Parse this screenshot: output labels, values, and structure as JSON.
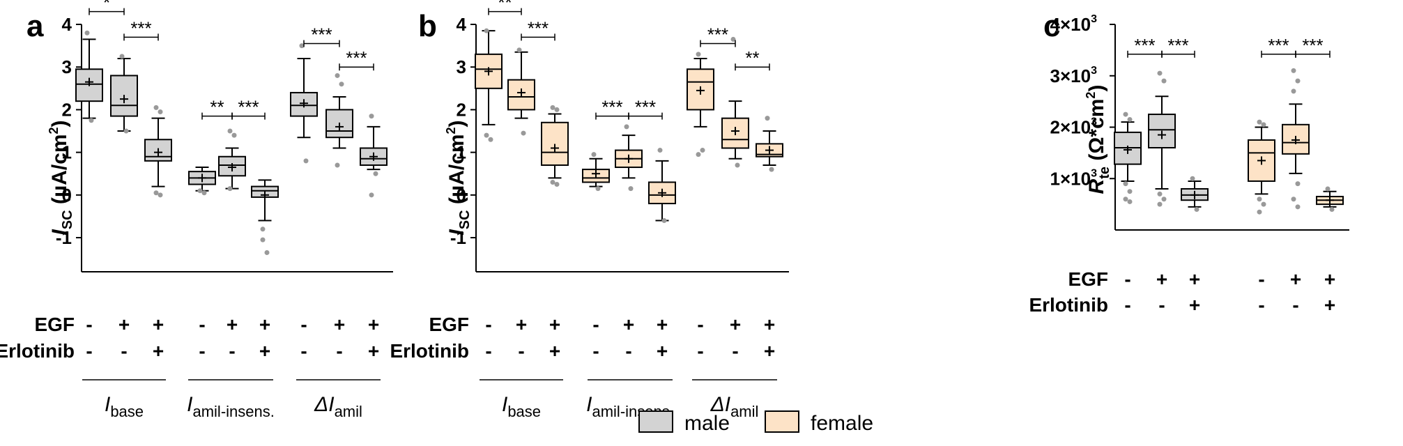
{
  "colors": {
    "male": "#d3d3d3",
    "female": "#fde3c7",
    "whisker": "#000000",
    "point": "#999999"
  },
  "legend": {
    "male_label": "male",
    "female_label": "female"
  },
  "treatments": {
    "egf_label": "EGF",
    "erlotinib_label": "Erlotinib",
    "egf": [
      "-",
      "+",
      "+"
    ],
    "erlotinib": [
      "-",
      "-",
      "+"
    ]
  },
  "chart_data": [
    {
      "panel_label": "a",
      "type": "box",
      "series_color": "male",
      "ylabel_main": "I",
      "ylabel_sub": "SC",
      "ylabel_rest": " (µA/cm",
      "ylabel_sup": "2",
      "ylabel_end": ")",
      "ylim": [
        -1.8,
        4
      ],
      "yticks": [
        4,
        3,
        2,
        1,
        0,
        -1
      ],
      "ytick_labels": [
        "4",
        "3",
        "2",
        "1",
        "0",
        "-1"
      ],
      "groups": [
        {
          "label_main": "I",
          "label_sub": "base",
          "label_prefix": ""
        },
        {
          "label_main": "I",
          "label_sub": "amil-insens.",
          "label_prefix": ""
        },
        {
          "label_main": "I",
          "label_sub": "amil",
          "label_prefix": "Δ"
        }
      ],
      "boxes": [
        {
          "min": 1.8,
          "q1": 2.2,
          "median": 2.6,
          "q3": 2.95,
          "max": 3.65,
          "mean": 2.65,
          "outliers": [
            3.8,
            1.75
          ]
        },
        {
          "min": 1.5,
          "q1": 1.85,
          "median": 2.1,
          "q3": 2.8,
          "max": 3.2,
          "mean": 2.25,
          "outliers": [
            3.25,
            1.5
          ]
        },
        {
          "min": 0.2,
          "q1": 0.8,
          "median": 0.9,
          "q3": 1.3,
          "max": 1.8,
          "mean": 1.0,
          "outliers": [
            2.05,
            1.95,
            0.05,
            0.0
          ]
        },
        {
          "min": 0.1,
          "q1": 0.25,
          "median": 0.4,
          "q3": 0.55,
          "max": 0.65,
          "mean": 0.4,
          "outliers": [
            0.1,
            0.05
          ]
        },
        {
          "min": 0.15,
          "q1": 0.45,
          "median": 0.7,
          "q3": 0.9,
          "max": 1.1,
          "mean": 0.65,
          "outliers": [
            1.5,
            1.4,
            0.15
          ]
        },
        {
          "min": -0.6,
          "q1": -0.05,
          "median": 0.1,
          "q3": 0.2,
          "max": 0.35,
          "mean": 0.0,
          "outliers": [
            -1.05,
            -1.35,
            -0.8
          ]
        },
        {
          "min": 1.35,
          "q1": 1.85,
          "median": 2.1,
          "q3": 2.4,
          "max": 3.2,
          "mean": 2.15,
          "outliers": [
            3.5,
            0.8
          ]
        },
        {
          "min": 1.1,
          "q1": 1.35,
          "median": 1.5,
          "q3": 2.0,
          "max": 2.3,
          "mean": 1.6,
          "outliers": [
            2.8,
            2.6,
            0.7
          ]
        },
        {
          "min": 0.6,
          "q1": 0.7,
          "median": 0.85,
          "q3": 1.1,
          "max": 1.6,
          "mean": 0.9,
          "outliers": [
            1.85,
            0.5,
            0.0
          ]
        }
      ],
      "significance": [
        {
          "from": 0,
          "to": 1,
          "y": 4.3,
          "label": "*"
        },
        {
          "from": 1,
          "to": 2,
          "y": 3.7,
          "label": "***"
        },
        {
          "from": 3,
          "to": 4,
          "y": 1.85,
          "label": "**"
        },
        {
          "from": 4,
          "to": 5,
          "y": 1.85,
          "label": "***"
        },
        {
          "from": 6,
          "to": 7,
          "y": 3.55,
          "label": "***"
        },
        {
          "from": 7,
          "to": 8,
          "y": 3.0,
          "label": "***"
        }
      ]
    },
    {
      "panel_label": "b",
      "type": "box",
      "series_color": "female",
      "ylabel_main": "I",
      "ylabel_sub": "SC",
      "ylabel_rest": " (µA/cm",
      "ylabel_sup": "2",
      "ylabel_end": ")",
      "ylim": [
        -1.8,
        4
      ],
      "yticks": [
        4,
        3,
        2,
        1,
        0,
        -1
      ],
      "ytick_labels": [
        "4",
        "3",
        "2",
        "1",
        "0",
        "-1"
      ],
      "groups": [
        {
          "label_main": "I",
          "label_sub": "base",
          "label_prefix": ""
        },
        {
          "label_main": "I",
          "label_sub": "amil-insens.",
          "label_prefix": ""
        },
        {
          "label_main": "I",
          "label_sub": "amil",
          "label_prefix": "Δ"
        }
      ],
      "boxes": [
        {
          "min": 1.65,
          "q1": 2.5,
          "median": 2.95,
          "q3": 3.3,
          "max": 3.85,
          "mean": 2.9,
          "outliers": [
            1.4,
            1.3,
            3.85
          ]
        },
        {
          "min": 1.8,
          "q1": 2.0,
          "median": 2.3,
          "q3": 2.7,
          "max": 3.35,
          "mean": 2.4,
          "outliers": [
            3.4,
            1.45
          ]
        },
        {
          "min": 0.4,
          "q1": 0.7,
          "median": 1.0,
          "q3": 1.7,
          "max": 1.9,
          "mean": 1.1,
          "outliers": [
            2.05,
            2.0,
            0.3,
            0.25
          ]
        },
        {
          "min": 0.2,
          "q1": 0.3,
          "median": 0.4,
          "q3": 0.6,
          "max": 0.85,
          "mean": 0.5,
          "outliers": [
            0.95,
            0.15
          ]
        },
        {
          "min": 0.4,
          "q1": 0.65,
          "median": 0.85,
          "q3": 1.05,
          "max": 1.4,
          "mean": 0.85,
          "outliers": [
            1.6,
            0.15
          ]
        },
        {
          "min": -0.6,
          "q1": -0.2,
          "median": 0.0,
          "q3": 0.3,
          "max": 0.8,
          "mean": 0.05,
          "outliers": [
            1.05,
            -0.6
          ]
        },
        {
          "min": 1.6,
          "q1": 2.0,
          "median": 2.65,
          "q3": 2.95,
          "max": 3.2,
          "mean": 2.45,
          "outliers": [
            3.3,
            1.05,
            0.95
          ]
        },
        {
          "min": 0.85,
          "q1": 1.1,
          "median": 1.3,
          "q3": 1.8,
          "max": 2.2,
          "mean": 1.5,
          "outliers": [
            3.65,
            0.7
          ]
        },
        {
          "min": 0.7,
          "q1": 0.9,
          "median": 0.95,
          "q3": 1.2,
          "max": 1.5,
          "mean": 1.05,
          "outliers": [
            1.8,
            0.6
          ]
        }
      ],
      "significance": [
        {
          "from": 0,
          "to": 1,
          "y": 4.3,
          "label": "**"
        },
        {
          "from": 1,
          "to": 2,
          "y": 3.7,
          "label": "***"
        },
        {
          "from": 3,
          "to": 4,
          "y": 1.85,
          "label": "***"
        },
        {
          "from": 4,
          "to": 5,
          "y": 1.85,
          "label": "***"
        },
        {
          "from": 6,
          "to": 7,
          "y": 3.55,
          "label": "***"
        },
        {
          "from": 7,
          "to": 8,
          "y": 3.0,
          "label": "**"
        }
      ]
    },
    {
      "panel_label": "c",
      "type": "box",
      "ylabel_main": "R",
      "ylabel_sub": "te",
      "ylabel_rest": " (Ω*cm",
      "ylabel_sup": "2",
      "ylabel_end": ")",
      "ylim": [
        0,
        4000
      ],
      "yticks": [
        4000,
        3000,
        2000,
        1000
      ],
      "ytick_labels": [
        "4×10",
        "3×10",
        "2×10",
        "1×10"
      ],
      "ytick_sup": "3",
      "boxes": [
        {
          "color": "male",
          "min": 950,
          "q1": 1280,
          "median": 1600,
          "q3": 1900,
          "max": 2100,
          "mean": 1560,
          "outliers": [
            2250,
            2150,
            900,
            750,
            600,
            550
          ]
        },
        {
          "color": "male",
          "min": 800,
          "q1": 1600,
          "median": 1950,
          "q3": 2250,
          "max": 2600,
          "mean": 1850,
          "outliers": [
            3050,
            2900,
            700,
            600,
            500
          ]
        },
        {
          "color": "male",
          "min": 450,
          "q1": 580,
          "median": 680,
          "q3": 800,
          "max": 950,
          "mean": 680,
          "outliers": [
            1000,
            400
          ]
        },
        {
          "color": "female",
          "min": 700,
          "q1": 950,
          "median": 1500,
          "q3": 1750,
          "max": 2000,
          "mean": 1350,
          "outliers": [
            2100,
            2050,
            600,
            500,
            350
          ]
        },
        {
          "color": "female",
          "min": 1100,
          "q1": 1480,
          "median": 1700,
          "q3": 2050,
          "max": 2450,
          "mean": 1750,
          "outliers": [
            3100,
            2900,
            2700,
            900,
            600,
            450
          ]
        },
        {
          "color": "female",
          "min": 450,
          "q1": 500,
          "median": 580,
          "q3": 650,
          "max": 750,
          "mean": 580,
          "outliers": [
            800,
            400
          ]
        }
      ],
      "significance": [
        {
          "from": 0,
          "to": 1,
          "y": 3420,
          "label": "***"
        },
        {
          "from": 1,
          "to": 2,
          "y": 3420,
          "label": "***"
        },
        {
          "from": 3,
          "to": 4,
          "y": 3420,
          "label": "***"
        },
        {
          "from": 4,
          "to": 5,
          "y": 3420,
          "label": "***"
        }
      ]
    }
  ]
}
